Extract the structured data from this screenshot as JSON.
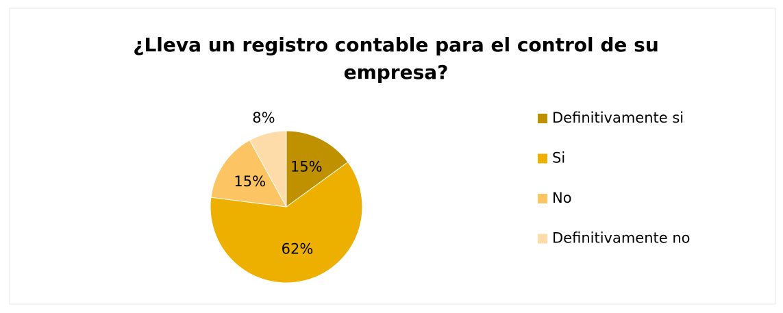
{
  "chart_data": {
    "type": "pie",
    "title": "¿Lleva un registro contable para el control de su empresa?",
    "categories": [
      "Definitivamente si",
      "Si",
      "No",
      "Definitivamente no"
    ],
    "values": [
      15,
      62,
      15,
      8
    ],
    "value_labels": [
      "15%",
      "62%",
      "15%",
      "8%"
    ],
    "colors": [
      "#bf9000",
      "#edb000",
      "#fcc462",
      "#fddcaa"
    ],
    "legend": "right"
  }
}
